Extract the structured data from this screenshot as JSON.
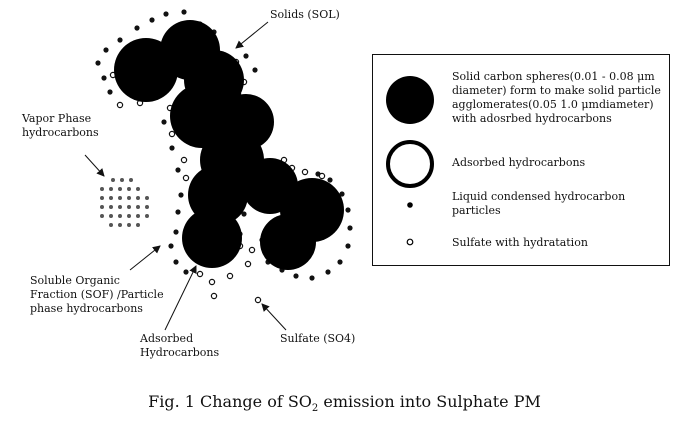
{
  "labels": {
    "solids": "Solids (SOL)",
    "vapor": "Vapor Phase\nhydrocarbons",
    "sof": "Soluble Organic\nFraction (SOF) /Particle\nphase hydrocarbons",
    "adsorbed": "Adsorbed\nHydrocarbons",
    "sulfate": "Sulfate (SO4)"
  },
  "legend": {
    "solid_spheres": "Solid carbon spheres(0.01 - 0.08 μm\ndiameter) form to make solid particle\nagglomerates(0.05  1.0 μmdiameter)\nwith adosrbed hydrocarbons",
    "adsorbed": "Adsorbed hydrocarbons",
    "liquid": "Liquid condensed hydrocarbon\nparticles",
    "sulfate": "Sulfate with hydratation"
  },
  "caption": {
    "prefix": "Fig. 1 Change of SO",
    "subscript": "2",
    "suffix": " emission into Sulphate PM"
  }
}
